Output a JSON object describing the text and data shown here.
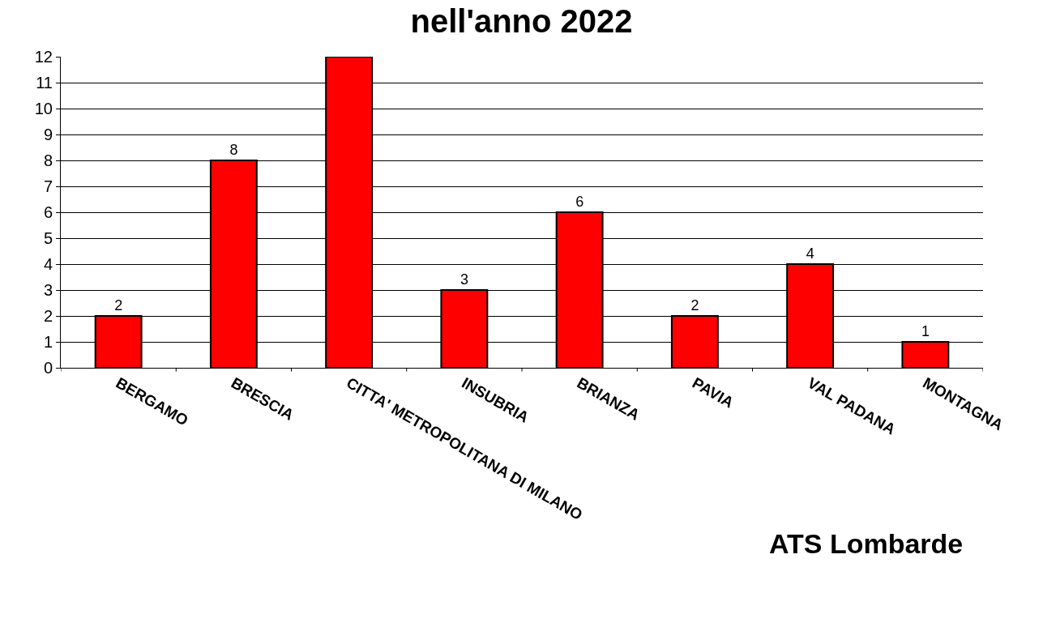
{
  "chart_data": {
    "type": "bar",
    "title": "nell'anno 2022",
    "categories": [
      "BERGAMO",
      "BRESCIA",
      "CITTA' METROPOLITANA DI MILANO",
      "INSUBRIA",
      "BRIANZA",
      "PAVIA",
      "VAL PADANA",
      "MONTAGNA"
    ],
    "values": [
      2,
      8,
      12,
      3,
      6,
      2,
      4,
      1
    ],
    "value_labels": [
      "2",
      "8",
      null,
      "3",
      "6",
      "2",
      "4",
      "1"
    ],
    "color": "#ff0000",
    "ylim": [
      0,
      12
    ],
    "yticks": [
      0,
      1,
      2,
      3,
      4,
      5,
      6,
      7,
      8,
      9,
      10,
      11,
      12
    ],
    "grid": "y",
    "legend": false,
    "annotations": [
      "ATS Lombarde"
    ]
  }
}
